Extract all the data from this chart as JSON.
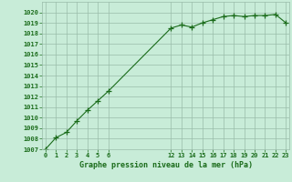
{
  "x": [
    0,
    1,
    2,
    3,
    4,
    5,
    6,
    12,
    13,
    14,
    15,
    16,
    17,
    18,
    19,
    20,
    21,
    22,
    23
  ],
  "y": [
    1007.0,
    1008.1,
    1008.6,
    1009.7,
    1010.7,
    1011.6,
    1012.5,
    1018.5,
    1018.8,
    1018.6,
    1019.0,
    1019.3,
    1019.6,
    1019.7,
    1019.6,
    1019.7,
    1019.7,
    1019.8,
    1019.0
  ],
  "line_color": "#1a6b1a",
  "marker": "+",
  "marker_size": 4,
  "bg_color": "#c8ecd8",
  "grid_color": "#9abcaa",
  "xlabel": "Graphe pression niveau de la mer (hPa)",
  "xlabel_color": "#1a6b1a",
  "tick_color": "#1a6b1a",
  "ylim": [
    1007,
    1021
  ],
  "xlim": [
    -0.3,
    23.3
  ],
  "yticks": [
    1007,
    1008,
    1009,
    1010,
    1011,
    1012,
    1013,
    1014,
    1015,
    1016,
    1017,
    1018,
    1019,
    1020
  ],
  "xticks": [
    0,
    1,
    2,
    3,
    4,
    5,
    6,
    12,
    13,
    14,
    15,
    16,
    17,
    18,
    19,
    20,
    21,
    22,
    23
  ],
  "tick_fontsize": 5.0,
  "xlabel_fontsize": 6.0
}
